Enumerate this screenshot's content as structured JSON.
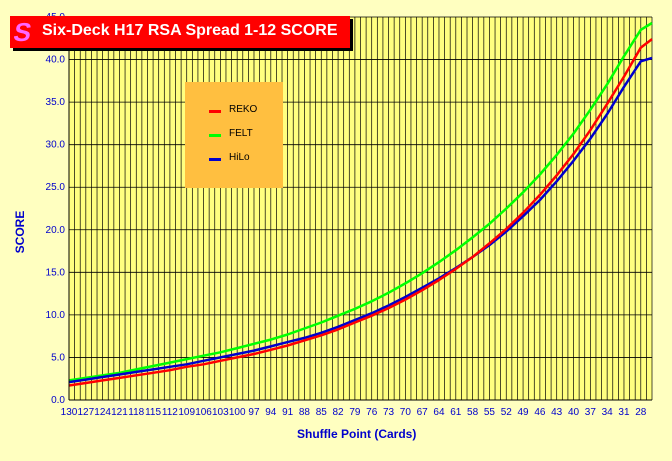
{
  "title": "Six-Deck H17 RSA Spread 1-12 SCORE",
  "logo_glyph": "S",
  "colors": {
    "background": "#FFFFC0",
    "title_bg": "#FF0000",
    "legend_bg": "#FFBF40",
    "axis_title": "#0000CC",
    "reko": "#FF0000",
    "felt": "#00FF00",
    "hilo": "#0000CC"
  },
  "chart_data": {
    "type": "line",
    "title": "Six-Deck H17 RSA Spread 1-12 SCORE",
    "xlabel": "Shuffle Point (Cards)",
    "ylabel": "SCORE",
    "ylim": [
      0,
      45
    ],
    "yticks": [
      "0.0",
      "5.0",
      "10.0",
      "15.0",
      "20.0",
      "25.0",
      "30.0",
      "35.0",
      "40.0",
      "45.0"
    ],
    "x_tick_labels": [
      "130",
      "127",
      "124",
      "121",
      "118",
      "115",
      "112",
      "109",
      "106",
      "103",
      "100",
      "97",
      "94",
      "91",
      "88",
      "85",
      "82",
      "79",
      "76",
      "73",
      "70",
      "67",
      "64",
      "61",
      "58",
      "55",
      "52",
      "49",
      "46",
      "43",
      "40",
      "37",
      "34",
      "31",
      "28"
    ],
    "x": [
      130,
      127,
      124,
      121,
      118,
      115,
      112,
      109,
      106,
      103,
      100,
      97,
      94,
      91,
      88,
      85,
      82,
      79,
      76,
      73,
      70,
      67,
      64,
      61,
      58,
      55,
      52,
      49,
      46,
      43,
      40,
      37,
      34,
      31,
      28,
      26
    ],
    "grid": true,
    "legend_position": "top-left",
    "series": [
      {
        "name": "REKO",
        "values": [
          1.7,
          2.0,
          2.3,
          2.6,
          2.9,
          3.2,
          3.5,
          3.9,
          4.2,
          4.6,
          5.0,
          5.4,
          5.9,
          6.4,
          7.0,
          7.6,
          8.3,
          9.1,
          9.9,
          10.8,
          11.8,
          12.9,
          14.1,
          15.4,
          16.8,
          18.4,
          20.1,
          22.0,
          24.1,
          26.4,
          28.9,
          31.7,
          34.8,
          38.0,
          41.4,
          42.4
        ]
      },
      {
        "name": "FELT",
        "values": [
          2.3,
          2.6,
          2.9,
          3.2,
          3.6,
          4.0,
          4.4,
          4.8,
          5.2,
          5.6,
          6.1,
          6.6,
          7.1,
          7.7,
          8.4,
          9.1,
          9.9,
          10.7,
          11.6,
          12.6,
          13.7,
          14.9,
          16.2,
          17.6,
          19.1,
          20.7,
          22.5,
          24.4,
          26.5,
          28.8,
          31.3,
          34.1,
          37.1,
          40.4,
          43.5,
          44.3
        ]
      },
      {
        "name": "HiLo",
        "values": [
          2.1,
          2.4,
          2.7,
          3.0,
          3.3,
          3.6,
          3.9,
          4.2,
          4.6,
          5.0,
          5.4,
          5.8,
          6.3,
          6.8,
          7.3,
          7.9,
          8.6,
          9.4,
          10.2,
          11.1,
          12.1,
          13.2,
          14.3,
          15.5,
          16.8,
          18.2,
          19.8,
          21.6,
          23.5,
          25.7,
          28.1,
          30.7,
          33.6,
          36.8,
          39.8,
          40.2
        ]
      }
    ]
  }
}
